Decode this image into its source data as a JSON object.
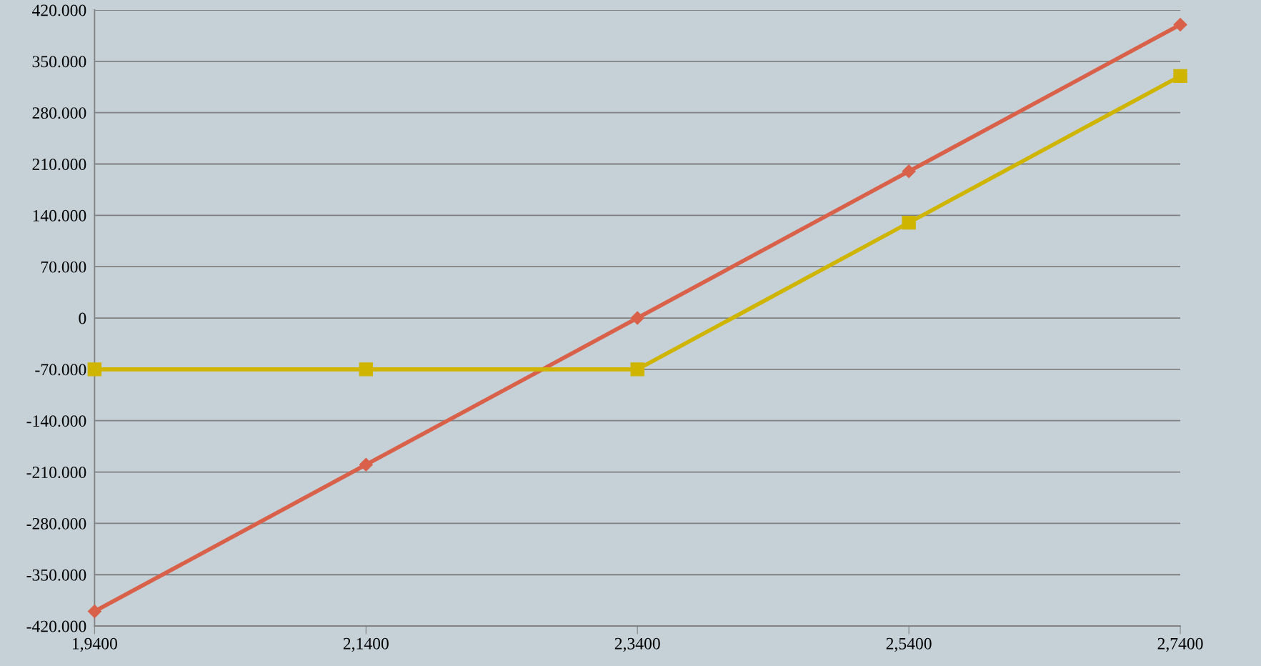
{
  "chart_data": {
    "type": "line",
    "categories": [
      "1,9400",
      "2,1400",
      "2,3400",
      "2,5400",
      "2,7400"
    ],
    "series": [
      {
        "color": "#d9614a",
        "marker": "diamond",
        "values": [
          -400000,
          -200000,
          0,
          200000,
          400000
        ]
      },
      {
        "color": "#cfb500",
        "marker": "square",
        "values": [
          -70000,
          -70000,
          -70000,
          130000,
          330000
        ]
      }
    ],
    "ylim": [
      -420000,
      420000
    ],
    "yticks": [
      {
        "value": -420000,
        "label": "-420.000"
      },
      {
        "value": -350000,
        "label": "-350.000"
      },
      {
        "value": -280000,
        "label": "-280.000"
      },
      {
        "value": -210000,
        "label": "-210.000"
      },
      {
        "value": -140000,
        "label": "-140.000"
      },
      {
        "value": -70000,
        "label": "-70.000"
      },
      0,
      {
        "value": 70000,
        "label": "70.000"
      },
      {
        "value": 140000,
        "label": "140.000"
      },
      {
        "value": 210000,
        "label": "210.000"
      },
      {
        "value": 280000,
        "label": "280.000"
      },
      {
        "value": 350000,
        "label": "350.000"
      },
      {
        "value": 420000,
        "label": "420.000"
      }
    ],
    "grid": "y",
    "legend": false,
    "line_style": "solid"
  }
}
